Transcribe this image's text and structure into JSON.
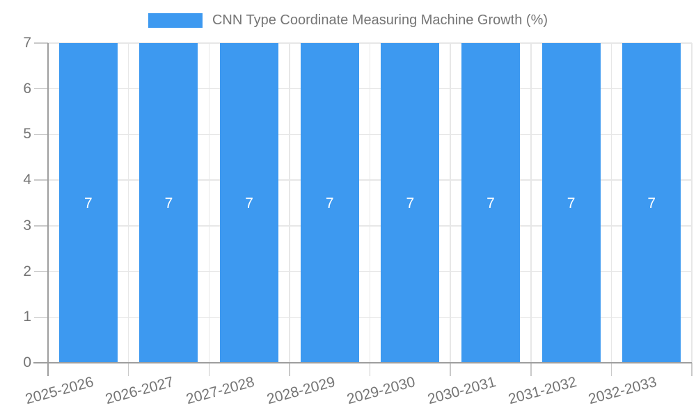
{
  "chart_data": {
    "type": "bar",
    "title": "CNN Type Coordinate Measuring Machine Growth (%)",
    "categories": [
      "2025-2026",
      "2026-2027",
      "2027-2028",
      "2028-2029",
      "2029-2030",
      "2030-2031",
      "2031-2032",
      "2032-2033"
    ],
    "values": [
      7,
      7,
      7,
      7,
      7,
      7,
      7,
      7
    ],
    "value_labels": [
      "7",
      "7",
      "7",
      "7",
      "7",
      "7",
      "7",
      "7"
    ],
    "xlabel": "",
    "ylabel": "",
    "ylim": [
      0,
      7
    ],
    "yticks": [
      0,
      1,
      2,
      3,
      4,
      5,
      6,
      7
    ],
    "grid": true,
    "legend_position": "top",
    "x_label_rotation_deg": -15,
    "colors": {
      "bar": "#3D99F0",
      "grid": "#E7E7E7",
      "tick": "#C9C9C9",
      "axis": "#9E9E9E",
      "label_text": "#757575",
      "value_label": "#FFFFFF",
      "background": "#FFFFFF"
    }
  }
}
